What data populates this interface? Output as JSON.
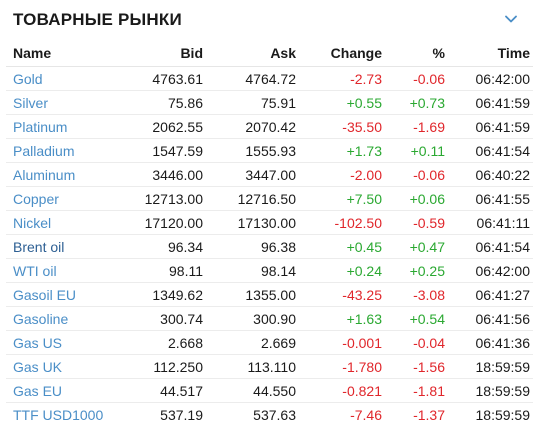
{
  "header": {
    "title": "ТОВАРНЫЕ РЫНКИ"
  },
  "columns": {
    "name": "Name",
    "bid": "Bid",
    "ask": "Ask",
    "change": "Change",
    "pct": "%",
    "time": "Time"
  },
  "colors": {
    "up": "#2aa831",
    "down": "#e0262b",
    "link": "#4a8ec7"
  },
  "rows": [
    {
      "name": "Gold",
      "bid": "4763.61",
      "ask": "4764.72",
      "change": "-2.73",
      "pct": "-0.06",
      "time": "06:42:00",
      "dir": "down"
    },
    {
      "name": "Silver",
      "bid": "75.86",
      "ask": "75.91",
      "change": "+0.55",
      "pct": "+0.73",
      "time": "06:41:59",
      "dir": "up"
    },
    {
      "name": "Platinum",
      "bid": "2062.55",
      "ask": "2070.42",
      "change": "-35.50",
      "pct": "-1.69",
      "time": "06:41:59",
      "dir": "down"
    },
    {
      "name": "Palladium",
      "bid": "1547.59",
      "ask": "1555.93",
      "change": "+1.73",
      "pct": "+0.11",
      "time": "06:41:54",
      "dir": "up"
    },
    {
      "name": "Aluminum",
      "bid": "3446.00",
      "ask": "3447.00",
      "change": "-2.00",
      "pct": "-0.06",
      "time": "06:40:22",
      "dir": "down"
    },
    {
      "name": "Copper",
      "bid": "12713.00",
      "ask": "12716.50",
      "change": "+7.50",
      "pct": "+0.06",
      "time": "06:41:55",
      "dir": "up"
    },
    {
      "name": "Nickel",
      "bid": "17120.00",
      "ask": "17130.00",
      "change": "-102.50",
      "pct": "-0.59",
      "time": "06:41:11",
      "dir": "down"
    },
    {
      "name": "Brent oil",
      "bid": "96.34",
      "ask": "96.38",
      "change": "+0.45",
      "pct": "+0.47",
      "time": "06:41:54",
      "dir": "up"
    },
    {
      "name": "WTI oil",
      "bid": "98.11",
      "ask": "98.14",
      "change": "+0.24",
      "pct": "+0.25",
      "time": "06:42:00",
      "dir": "up"
    },
    {
      "name": "Gasoil EU",
      "bid": "1349.62",
      "ask": "1355.00",
      "change": "-43.25",
      "pct": "-3.08",
      "time": "06:41:27",
      "dir": "down"
    },
    {
      "name": "Gasoline",
      "bid": "300.74",
      "ask": "300.90",
      "change": "+1.63",
      "pct": "+0.54",
      "time": "06:41:56",
      "dir": "up"
    },
    {
      "name": "Gas US",
      "bid": "2.668",
      "ask": "2.669",
      "change": "-0.001",
      "pct": "-0.04",
      "time": "06:41:36",
      "dir": "down"
    },
    {
      "name": "Gas UK",
      "bid": "112.250",
      "ask": "113.110",
      "change": "-1.780",
      "pct": "-1.56",
      "time": "18:59:59",
      "dir": "down"
    },
    {
      "name": "Gas EU",
      "bid": "44.517",
      "ask": "44.550",
      "change": "-0.821",
      "pct": "-1.81",
      "time": "18:59:59",
      "dir": "down"
    },
    {
      "name": "TTF USD1000",
      "bid": "537.19",
      "ask": "537.63",
      "change": "-7.46",
      "pct": "-1.37",
      "time": "18:59:59",
      "dir": "down"
    }
  ]
}
